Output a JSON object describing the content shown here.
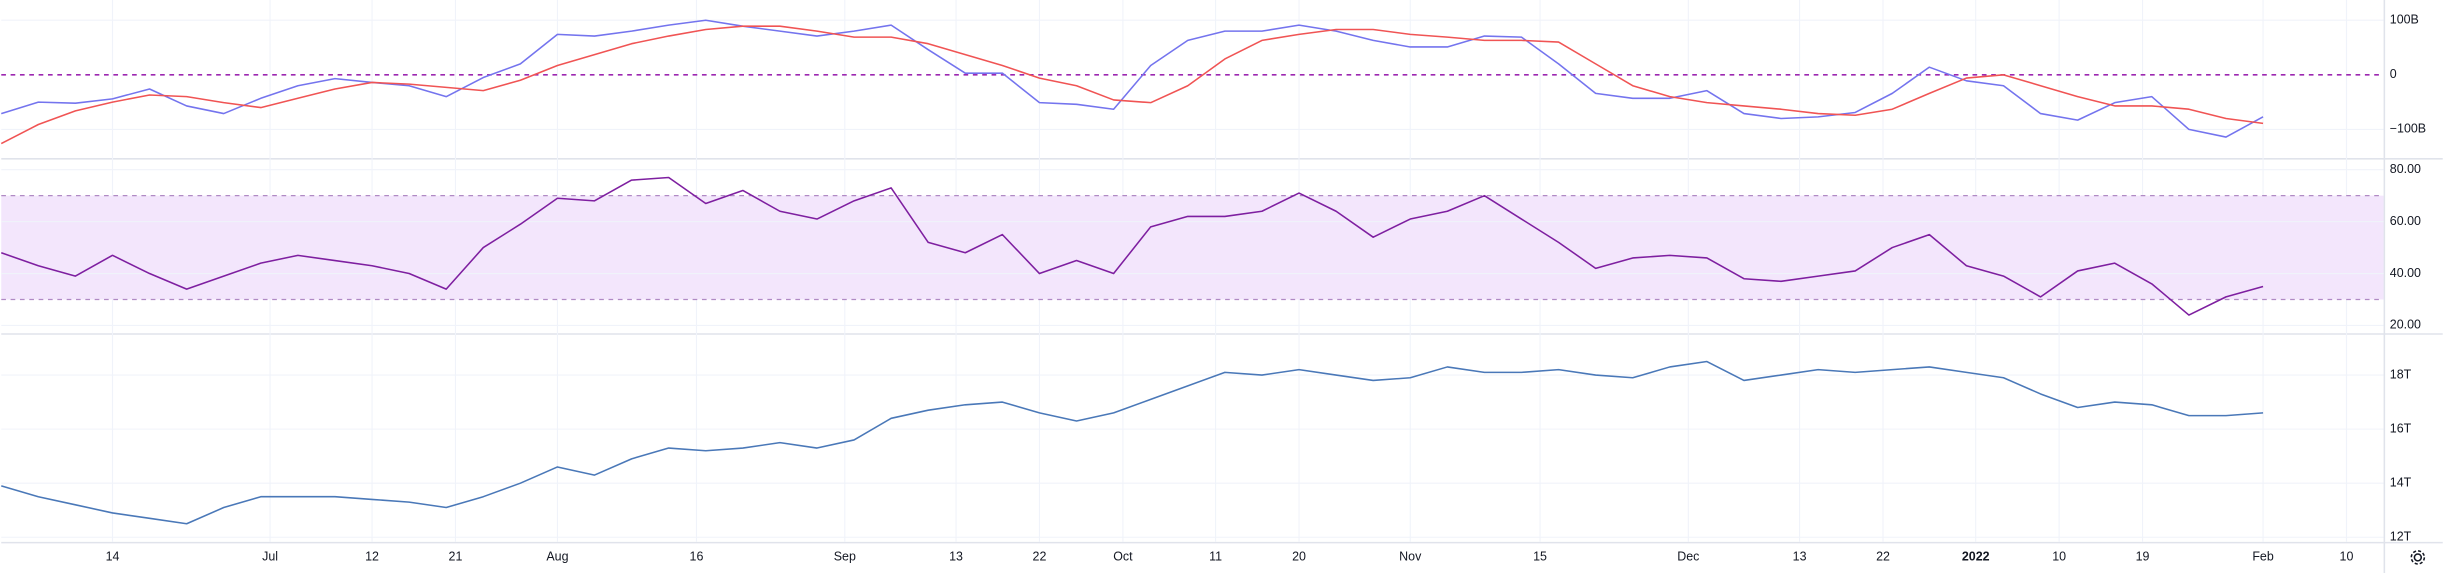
{
  "chart_data": [
    {
      "type": "line",
      "x": [
        0,
        4,
        8,
        12,
        16,
        20,
        24,
        28,
        32,
        36,
        40,
        44,
        48,
        52,
        56,
        60,
        64,
        68,
        72,
        76,
        80,
        84,
        88,
        92,
        96,
        100,
        104,
        108,
        112,
        116,
        120,
        124,
        128,
        132,
        136,
        140,
        144,
        148,
        152,
        156,
        160,
        164,
        168,
        172,
        176,
        180,
        184,
        188,
        192,
        196,
        200,
        204,
        208,
        212,
        216,
        220,
        224,
        228,
        232,
        236,
        240,
        244
      ],
      "series": [
        {
          "color": "#7474ee",
          "values": [
            -71,
            -50,
            -52,
            -44,
            -26,
            -57,
            -71,
            -43,
            -20,
            -7,
            -14,
            -20,
            -40,
            -5,
            20,
            74,
            71,
            80,
            91,
            100,
            89,
            80,
            71,
            80,
            91,
            46,
            3,
            3,
            -51,
            -54,
            -63,
            17,
            63,
            80,
            80,
            91,
            80,
            63,
            51,
            51,
            71,
            69,
            20,
            -34,
            -43,
            -43,
            -29,
            -71,
            -80,
            -77,
            -69,
            -34,
            14,
            -11,
            -20,
            -71,
            -83,
            -51,
            -40,
            -100,
            -114,
            -77
          ]
        },
        {
          "color": "#f05454",
          "values": [
            -126,
            -91,
            -66,
            -50,
            -37,
            -40,
            -51,
            -60,
            -43,
            -26,
            -14,
            -17,
            -23,
            -29,
            -10,
            17,
            37,
            57,
            71,
            83,
            89,
            89,
            80,
            69,
            69,
            57,
            37,
            17,
            -6,
            -20,
            -46,
            -51,
            -20,
            29,
            63,
            74,
            83,
            83,
            74,
            69,
            63,
            63,
            60,
            20,
            -20,
            -40,
            -51,
            -57,
            -63,
            -71,
            -74,
            -63,
            -34,
            -6,
            0,
            -20,
            -40,
            -57,
            -57,
            -63,
            -80,
            -89
          ]
        }
      ],
      "ylim": [
        -151,
        137
      ],
      "yticks": [
        {
          "value": 100,
          "label": "100B"
        },
        0,
        {
          "value": -100,
          "label": "−100B"
        }
      ],
      "grid": true,
      "zero_line": true
    },
    {
      "type": "line",
      "x": [
        0,
        4,
        8,
        12,
        16,
        20,
        24,
        28,
        32,
        36,
        40,
        44,
        48,
        52,
        56,
        60,
        64,
        68,
        72,
        76,
        80,
        84,
        88,
        92,
        96,
        100,
        104,
        108,
        112,
        116,
        120,
        124,
        128,
        132,
        136,
        140,
        144,
        148,
        152,
        156,
        160,
        164,
        168,
        172,
        176,
        180,
        184,
        188,
        192,
        196,
        200,
        204,
        208,
        212,
        216,
        220,
        224,
        228,
        232,
        236,
        240,
        244
      ],
      "series": [
        {
          "color": "#7e1fa0",
          "values": [
            48,
            43,
            39,
            47,
            40,
            34,
            39,
            44,
            47,
            45,
            43,
            40,
            34,
            50,
            59,
            69,
            68,
            76,
            77,
            67,
            72,
            64,
            61,
            68,
            73,
            52,
            48,
            55,
            40,
            45,
            40,
            58,
            62,
            62,
            64,
            71,
            64,
            54,
            61,
            64,
            70,
            61,
            52,
            42,
            46,
            47,
            46,
            38,
            37,
            39,
            41,
            50,
            55,
            43,
            39,
            31,
            41,
            44,
            36,
            24,
            31,
            35
          ]
        }
      ],
      "ylim": [
        17,
        83.6
      ],
      "yticks": [
        {
          "value": 80,
          "label": "80.00"
        },
        {
          "value": 60,
          "label": "60.00"
        },
        {
          "value": 40,
          "label": "40.00"
        },
        {
          "value": 20,
          "label": "20.00"
        }
      ],
      "band": [
        30,
        70
      ],
      "band_color": "#f3e6fc",
      "grid": true
    },
    {
      "type": "line",
      "x": [
        0,
        4,
        8,
        12,
        16,
        20,
        24,
        28,
        32,
        36,
        40,
        44,
        48,
        52,
        56,
        60,
        64,
        68,
        72,
        76,
        80,
        84,
        88,
        92,
        96,
        100,
        104,
        108,
        112,
        116,
        120,
        124,
        128,
        132,
        136,
        140,
        144,
        148,
        152,
        156,
        160,
        164,
        168,
        172,
        176,
        180,
        184,
        188,
        192,
        196,
        200,
        204,
        208,
        212,
        216,
        220,
        224,
        228,
        232,
        236,
        240,
        244
      ],
      "series": [
        {
          "color": "#4a78b8",
          "values": [
            13.9,
            13.5,
            13.2,
            12.9,
            12.7,
            12.5,
            13.1,
            13.5,
            13.5,
            13.5,
            13.4,
            13.3,
            13.1,
            13.5,
            14.0,
            14.6,
            14.3,
            14.9,
            15.3,
            15.2,
            15.3,
            15.5,
            15.3,
            15.6,
            16.4,
            16.7,
            16.9,
            17.0,
            16.6,
            16.3,
            16.6,
            17.1,
            17.6,
            18.1,
            18.0,
            18.2,
            18.0,
            17.8,
            17.9,
            18.3,
            18.1,
            18.1,
            18.2,
            18.0,
            17.9,
            18.3,
            18.5,
            17.8,
            18.0,
            18.2,
            18.1,
            18.2,
            18.3,
            18.1,
            17.9,
            17.3,
            16.8,
            17.0,
            16.9,
            16.5,
            16.5,
            16.6
          ]
        }
      ],
      "ylim": [
        11.83,
        19.49
      ],
      "yticks": [
        {
          "value": 18,
          "label": "18T"
        },
        {
          "value": 16,
          "label": "16T"
        },
        {
          "value": 14,
          "label": "14T"
        },
        {
          "value": 12,
          "label": "12T"
        }
      ],
      "xlim": [
        0,
        257
      ],
      "xticks": [
        {
          "value": 12,
          "label": "14"
        },
        {
          "value": 29,
          "label": "Jul"
        },
        {
          "value": 40,
          "label": "12"
        },
        {
          "value": 49,
          "label": "21"
        },
        {
          "value": 60,
          "label": "Aug"
        },
        {
          "value": 75,
          "label": "16"
        },
        {
          "value": 91,
          "label": "Sep"
        },
        {
          "value": 103,
          "label": "13"
        },
        {
          "value": 112,
          "label": "22"
        },
        {
          "value": 121,
          "label": "Oct"
        },
        {
          "value": 131,
          "label": "11"
        },
        {
          "value": 140,
          "label": "20"
        },
        {
          "value": 152,
          "label": "Nov"
        },
        {
          "value": 166,
          "label": "15"
        },
        {
          "value": 182,
          "label": "Dec"
        },
        {
          "value": 194,
          "label": "13"
        },
        {
          "value": 203,
          "label": "22"
        },
        {
          "value": 213,
          "label": "2022",
          "bold": true
        },
        {
          "value": 222,
          "label": "10"
        },
        {
          "value": 231,
          "label": "19"
        },
        {
          "value": 244,
          "label": "Feb"
        },
        {
          "value": 253,
          "label": "10"
        }
      ],
      "grid": true
    }
  ]
}
